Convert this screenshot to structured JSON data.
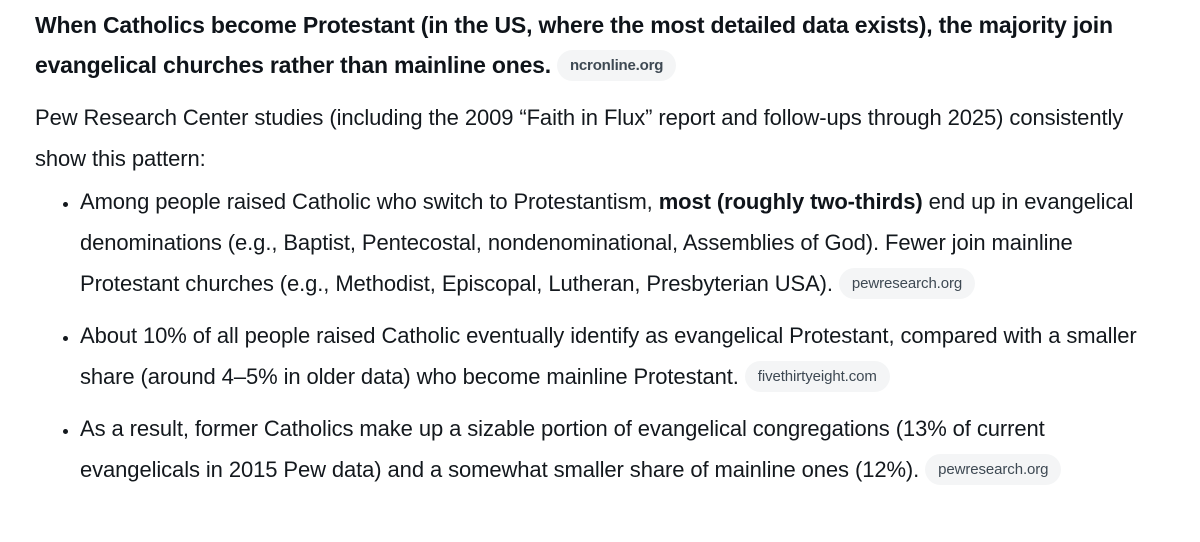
{
  "colors": {
    "background": "#ffffff",
    "text": "#13181d",
    "heading_text": "#0f141a",
    "pill_background": "#f4f5f6",
    "pill_text": "#3e4953"
  },
  "heading": {
    "text": "When Catholics become Protestant (in the US, where the most detailed data exists), the majority join evangelical churches rather than mainline ones.",
    "citation": "ncronline.org"
  },
  "intro": "Pew Research Center studies (including the 2009 “Faith in Flux” report and follow-ups through 2025) consistently show this pattern:",
  "bullets": [
    {
      "pre_bold": "Among people raised Catholic who switch to Protestantism, ",
      "bold": "most (roughly two-thirds)",
      "post_bold": " end up in evangelical denominations (e.g., Baptist, Pentecostal, nondenominational, Assemblies of God). Fewer join mainline Protestant churches (e.g., Methodist, Episcopal, Lutheran, Presbyterian USA).",
      "citation": "pewresearch.org"
    },
    {
      "pre_bold": "About 10% of all people raised Catholic eventually identify as evangelical Protestant, compared with a smaller share (around 4–5% in older data) who become mainline Protestant.",
      "bold": "",
      "post_bold": "",
      "citation": "fivethirtyeight.com"
    },
    {
      "pre_bold": "As a result, former Catholics make up a sizable portion of evangelical congregations (13% of current evangelicals in 2015 Pew data) and a somewhat smaller share of mainline ones (12%).",
      "bold": "",
      "post_bold": "",
      "citation": "pewresearch.org"
    }
  ]
}
